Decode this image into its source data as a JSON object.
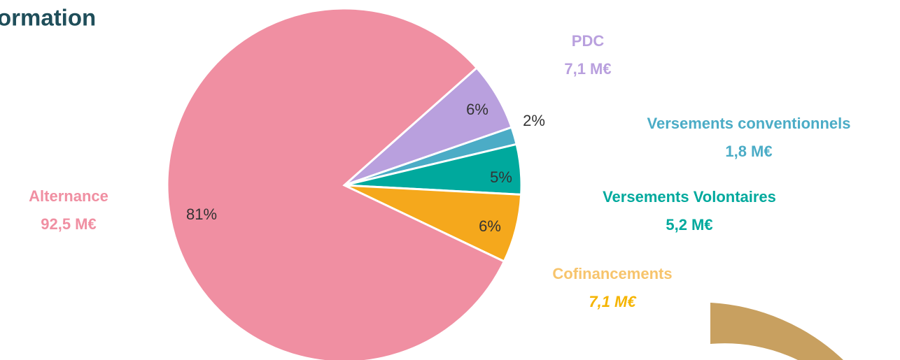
{
  "title_fragment": "ormation",
  "chart_data": {
    "type": "pie",
    "categories": [
      "PDC",
      "Versements conventionnels",
      "Versements Volontaires",
      "Cofinancements",
      "Alternance"
    ],
    "values": [
      7.1,
      1.8,
      5.2,
      7.1,
      92.5
    ],
    "value_labels": [
      "7,1 M€",
      "1,8 M€",
      "5,2 M€",
      "7,1 M€",
      "92,5 M€"
    ],
    "percents": [
      6,
      2,
      5,
      6,
      81
    ],
    "percent_labels": [
      "6%",
      "2%",
      "5%",
      "6%",
      "81%"
    ],
    "colors": [
      "#b9a0de",
      "#4bacc6",
      "#00a99d",
      "#f5a81c",
      "#f08fa2"
    ]
  }
}
